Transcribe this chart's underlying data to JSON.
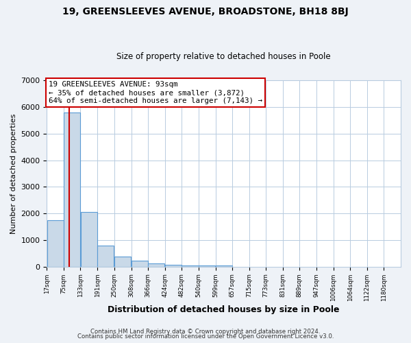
{
  "title": "19, GREENSLEEVES AVENUE, BROADSTONE, BH18 8BJ",
  "subtitle": "Size of property relative to detached houses in Poole",
  "xlabel": "Distribution of detached houses by size in Poole",
  "ylabel": "Number of detached properties",
  "bar_left_edges": [
    17,
    75,
    133,
    191,
    250,
    308,
    366,
    424,
    482,
    540,
    599,
    657,
    715,
    773,
    831,
    889,
    947,
    1006,
    1064,
    1122
  ],
  "bar_heights": [
    1750,
    5780,
    2060,
    800,
    370,
    235,
    125,
    80,
    55,
    45,
    35,
    0,
    0,
    0,
    0,
    0,
    0,
    0,
    0,
    0
  ],
  "bin_width": 58,
  "property_line_x": 93,
  "bar_color": "#c9d9e8",
  "bar_edge_color": "#5b9bd5",
  "line_color": "#cc0000",
  "annotation_line1": "19 GREENSLEEVES AVENUE: 93sqm",
  "annotation_line2": "← 35% of detached houses are smaller (3,872)",
  "annotation_line3": "64% of semi-detached houses are larger (7,143) →",
  "annotation_box_color": "#ffffff",
  "annotation_box_edge_color": "#cc0000",
  "ylim": [
    0,
    7000
  ],
  "yticks": [
    0,
    1000,
    2000,
    3000,
    4000,
    5000,
    6000,
    7000
  ],
  "xtick_labels": [
    "17sqm",
    "75sqm",
    "133sqm",
    "191sqm",
    "250sqm",
    "308sqm",
    "366sqm",
    "424sqm",
    "482sqm",
    "540sqm",
    "599sqm",
    "657sqm",
    "715sqm",
    "773sqm",
    "831sqm",
    "889sqm",
    "947sqm",
    "1006sqm",
    "1064sqm",
    "1122sqm",
    "1180sqm"
  ],
  "footer_line1": "Contains HM Land Registry data © Crown copyright and database right 2024.",
  "footer_line2": "Contains public sector information licensed under the Open Government Licence v3.0.",
  "bg_color": "#eef2f7",
  "plot_bg_color": "#ffffff",
  "grid_color": "#b8cce0"
}
